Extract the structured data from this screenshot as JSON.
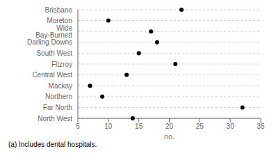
{
  "chart_data": {
    "type": "dot",
    "categories": [
      "Brisbane",
      "Moreton",
      "Wide Bay-Burnett",
      "Darling Downs",
      "South West",
      "Fitzroy",
      "Central West",
      "Mackay",
      "Northern",
      "Far North",
      "North West"
    ],
    "values": [
      22,
      10,
      17,
      18,
      15,
      21,
      13,
      7,
      9,
      32,
      14
    ],
    "xlim": [
      5,
      35
    ],
    "xticks": [
      5,
      10,
      15,
      20,
      25,
      30,
      35
    ],
    "xlabel": "no.",
    "annotations": [
      "(a) Includes dental hospitals."
    ],
    "color": "black",
    "marker": "circle",
    "grid": true
  }
}
